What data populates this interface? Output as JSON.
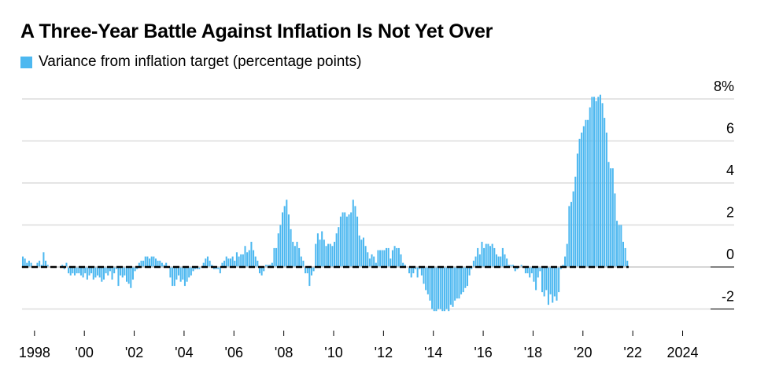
{
  "chart_data": {
    "type": "bar",
    "title": "A Three-Year Battle Against Inflation Is Not Yet Over",
    "legend": [
      {
        "label": "Variance from inflation target (percentage points)",
        "color": "#4db8f0"
      }
    ],
    "legend_placement": "top-left",
    "xlabel": "",
    "ylabel": "",
    "ylim": [
      -2,
      8.6
    ],
    "y_ticks": [
      8,
      6,
      4,
      2,
      0,
      -2
    ],
    "y_tick_labels": [
      "8%",
      "6",
      "4",
      "2",
      "0",
      "-2"
    ],
    "x_tick_labels": [
      "1998",
      "'00",
      "'02",
      "'04",
      "'06",
      "'08",
      "'10",
      "'12",
      "'14",
      "'16",
      "'18",
      "'20",
      "'22",
      "2024"
    ],
    "x_tick_years": [
      1998,
      2000,
      2002,
      2004,
      2006,
      2008,
      2010,
      2012,
      2014,
      2016,
      2018,
      2020,
      2022,
      2024
    ],
    "grid": true,
    "reference_line": {
      "value": 0,
      "style": "dashed"
    },
    "start": "1997-07",
    "frequency": "monthly",
    "values": [
      0.5,
      0.4,
      0.2,
      0.3,
      0.2,
      0.0,
      0.0,
      0.2,
      0.3,
      0.1,
      0.7,
      0.3,
      0.1,
      0.0,
      0.0,
      0.0,
      0.0,
      0.0,
      0.0,
      0.1,
      -0.1,
      0.2,
      -0.3,
      -0.4,
      -0.3,
      -0.4,
      -0.3,
      -0.3,
      -0.4,
      -0.5,
      -0.3,
      -0.6,
      -0.4,
      -0.3,
      -0.6,
      -0.5,
      -0.4,
      -0.5,
      -0.7,
      -0.6,
      -0.3,
      -0.4,
      -0.2,
      -0.6,
      -0.3,
      -0.1,
      -0.9,
      -0.4,
      -0.5,
      -0.4,
      -0.7,
      -0.8,
      -1.0,
      -0.6,
      -0.2,
      -0.1,
      0.2,
      0.3,
      0.3,
      0.5,
      0.5,
      0.4,
      0.5,
      0.5,
      0.4,
      0.3,
      0.3,
      0.2,
      0.1,
      0.2,
      0.0,
      -0.5,
      -0.9,
      -0.9,
      -0.6,
      -0.4,
      -0.7,
      -0.6,
      -0.9,
      -0.7,
      -0.5,
      -0.4,
      -0.2,
      -0.1,
      -0.1,
      -0.1,
      0.0,
      0.2,
      0.4,
      0.5,
      0.3,
      0.1,
      -0.1,
      -0.1,
      -0.1,
      -0.3,
      0.2,
      0.3,
      0.5,
      0.4,
      0.4,
      0.5,
      0.3,
      0.7,
      0.5,
      0.6,
      0.6,
      1.0,
      0.7,
      0.8,
      1.2,
      0.8,
      0.5,
      0.3,
      -0.3,
      -0.4,
      -0.2,
      0.1,
      0.1,
      0.1,
      0.2,
      0.9,
      0.9,
      1.6,
      2.0,
      2.6,
      2.9,
      3.2,
      2.5,
      1.8,
      1.2,
      1.0,
      1.2,
      0.9,
      0.5,
      0.3,
      -0.3,
      -0.3,
      -0.9,
      -0.4,
      -0.2,
      1.1,
      1.6,
      1.3,
      1.7,
      1.3,
      1.0,
      1.1,
      1.1,
      1.0,
      1.2,
      1.6,
      1.9,
      2.4,
      2.6,
      2.6,
      2.4,
      2.5,
      2.6,
      3.2,
      2.9,
      2.4,
      1.5,
      1.3,
      1.4,
      1.0,
      0.7,
      0.4,
      0.6,
      0.5,
      0.2,
      0.8,
      0.8,
      0.8,
      0.8,
      0.9,
      0.9,
      0.4,
      0.8,
      1.0,
      0.9,
      0.9,
      0.6,
      0.2,
      0.1,
      0.0,
      -0.3,
      -0.5,
      -0.3,
      -0.1,
      -0.5,
      -0.1,
      -0.4,
      -0.8,
      -1.1,
      -1.3,
      -1.6,
      -2.0,
      -2.1,
      -2.1,
      -2.0,
      -2.0,
      -2.1,
      -2.1,
      -2.0,
      -2.1,
      -1.8,
      -1.9,
      -1.6,
      -1.5,
      -1.5,
      -1.3,
      -1.2,
      -1.0,
      -0.9,
      -0.4,
      -0.1,
      0.3,
      0.5,
      0.9,
      0.6,
      1.2,
      0.9,
      1.1,
      1.1,
      1.0,
      1.1,
      0.9,
      0.6,
      0.5,
      0.5,
      0.9,
      0.6,
      0.4,
      0.1,
      0.1,
      0.1,
      -0.2,
      -0.1,
      0.0,
      0.1,
      0.0,
      -0.3,
      -0.3,
      -0.5,
      -0.3,
      -0.7,
      -1.1,
      -0.5,
      -0.2,
      -1.2,
      -1.4,
      -1.1,
      -1.8,
      -1.3,
      -1.7,
      -1.4,
      -1.6,
      -1.2,
      -0.1,
      0.1,
      0.5,
      1.1,
      2.9,
      3.1,
      3.6,
      4.3,
      5.4,
      6.1,
      6.4,
      6.7,
      7.0,
      7.0,
      7.6,
      8.1,
      8.1,
      7.9,
      8.1,
      8.2,
      7.8,
      7.1,
      6.4,
      5.0,
      4.7,
      4.7,
      3.5,
      2.2,
      2.0,
      2.0,
      1.2,
      0.9,
      0.3
    ]
  }
}
